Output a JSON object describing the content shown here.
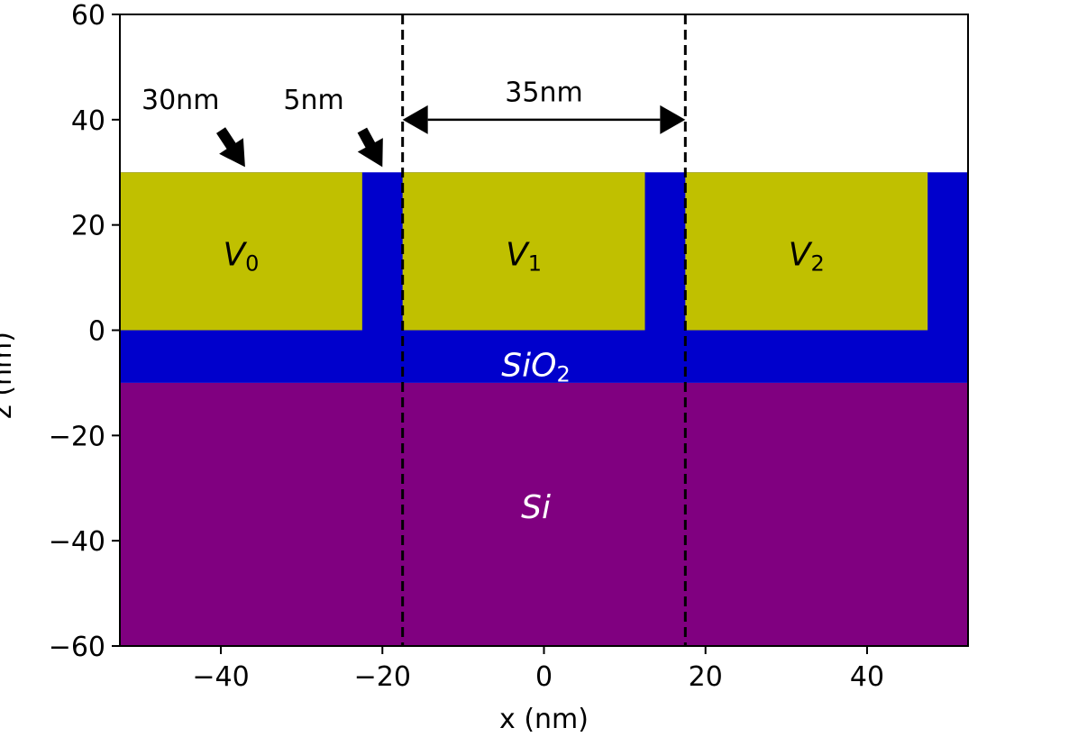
{
  "chart_data": {
    "type": "cross-section",
    "xlabel": "x (nm)",
    "ylabel": "z (nm)",
    "xlim": [
      -52.5,
      52.5
    ],
    "ylim": [
      -60,
      60
    ],
    "x_ticks": [
      -40,
      -20,
      0,
      20,
      40
    ],
    "y_ticks": [
      -60,
      -40,
      -20,
      0,
      20,
      40,
      60
    ],
    "x_tick_labels": [
      "−40",
      "−20",
      "0",
      "20",
      "40"
    ],
    "y_tick_labels": [
      "−60",
      "−40",
      "−20",
      "0",
      "20",
      "40",
      "60"
    ],
    "regions": [
      {
        "id": "si",
        "label": "Si",
        "color": "#800080",
        "label_color": "#ffffff",
        "x": [
          -52.5,
          52.5
        ],
        "z": [
          -60,
          -10
        ],
        "label_at": [
          -1,
          -34
        ]
      },
      {
        "id": "sio2",
        "label": "SiO",
        "label_sub": "2",
        "color": "#0000cc",
        "label_color": "#ffffff",
        "x": [
          -52.5,
          52.5
        ],
        "z": [
          -10,
          30
        ],
        "label_at": [
          -1,
          -7
        ]
      },
      {
        "id": "gate0",
        "label": "V",
        "label_sub": "0",
        "color": "#c0c000",
        "label_color": "#000000",
        "x": [
          -52.5,
          -22.5
        ],
        "z": [
          0,
          30
        ],
        "label_at": [
          -37.5,
          14
        ]
      },
      {
        "id": "gate1",
        "label": "V",
        "label_sub": "1",
        "color": "#c0c000",
        "label_color": "#000000",
        "x": [
          -17.5,
          12.5
        ],
        "z": [
          0,
          30
        ],
        "label_at": [
          -2.5,
          14
        ]
      },
      {
        "id": "gate2",
        "label": "V",
        "label_sub": "2",
        "color": "#c0c000",
        "label_color": "#000000",
        "x": [
          17.5,
          47.5
        ],
        "z": [
          0,
          30
        ],
        "label_at": [
          32.5,
          14
        ]
      }
    ],
    "dashed_lines_x": [
      -17.5,
      17.5
    ],
    "annotations": [
      {
        "text": "30nm",
        "text_at": [
          -45,
          42
        ],
        "arrow_from": [
          -40,
          38
        ],
        "arrow_to": [
          -37,
          31
        ]
      },
      {
        "text": "5nm",
        "text_at": [
          -28.5,
          42
        ],
        "arrow_from": [
          -22.5,
          38
        ],
        "arrow_to": [
          -20,
          31
        ]
      },
      {
        "text": "35nm",
        "text_at": [
          0,
          43.5
        ],
        "double_arrow": [
          -17.5,
          17.5
        ],
        "arrow_z": 40
      }
    ]
  }
}
